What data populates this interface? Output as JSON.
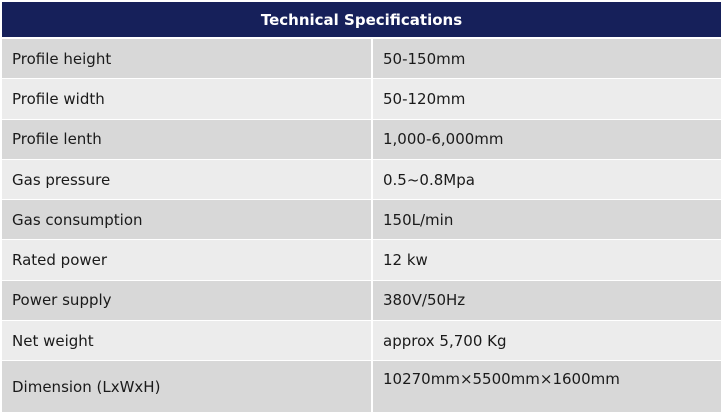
{
  "table": {
    "title": "Technical Specifications",
    "rows": [
      {
        "label": "Profile height",
        "value": "50-150mm"
      },
      {
        "label": "Profile width",
        "value": "50-120mm"
      },
      {
        "label": "Profile lenth",
        "value": "1,000-6,000mm"
      },
      {
        "label": "Gas pressure",
        "value": "0.5~0.8Mpa"
      },
      {
        "label": "Gas consumption",
        "value": "150L/min"
      },
      {
        "label": "Rated power",
        "value": "12 kw"
      },
      {
        "label": "Power supply",
        "value": "380V/50Hz"
      },
      {
        "label": "Net weight",
        "value": "approx 5,700 Kg"
      },
      {
        "label": "Dimension (LxWxH)",
        "value": "10270mm×5500mm×1600mm"
      }
    ]
  }
}
